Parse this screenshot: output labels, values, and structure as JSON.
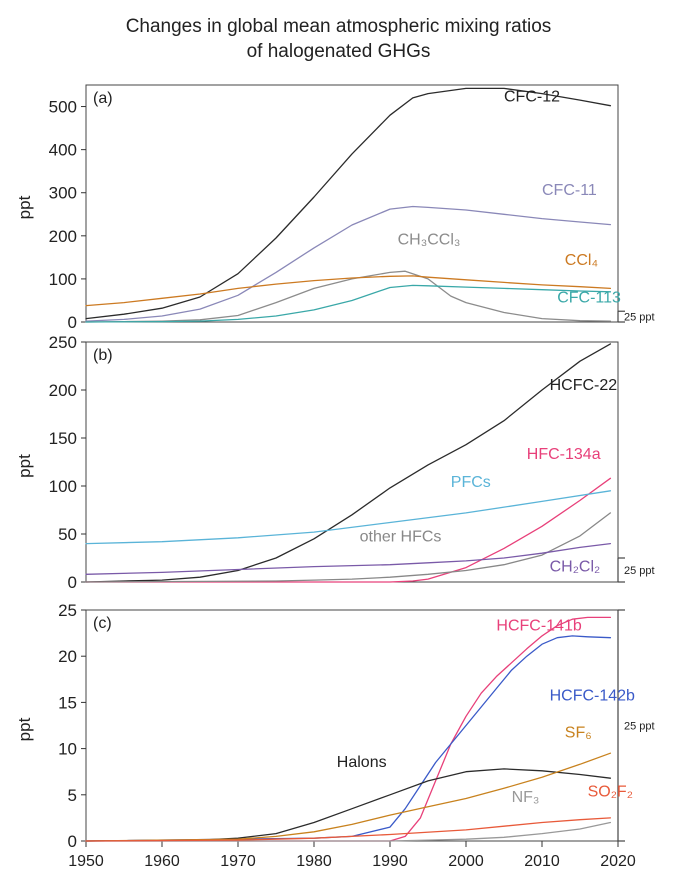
{
  "title_lines": [
    "Changes in global mean atmospheric mixing ratios",
    "of halogenated GHGs"
  ],
  "chart_data": [
    {
      "type": "line",
      "panel": "(a)",
      "ylabel": "ppt",
      "ylim": [
        0,
        550
      ],
      "yticks": [
        0,
        100,
        200,
        300,
        400,
        500
      ],
      "xlim": [
        1950,
        2020
      ],
      "scale_bar": "25 ppt",
      "series": [
        {
          "name": "CFC-12",
          "color": "#2b2b2b",
          "x": [
            1950,
            1955,
            1960,
            1965,
            1970,
            1975,
            1980,
            1985,
            1990,
            1993,
            1995,
            2000,
            2005,
            2010,
            2015,
            2019
          ],
          "values": [
            8,
            18,
            32,
            58,
            112,
            195,
            290,
            390,
            480,
            520,
            530,
            542,
            542,
            530,
            515,
            502
          ]
        },
        {
          "name": "CFC-11",
          "color": "#8a88b8",
          "x": [
            1950,
            1955,
            1960,
            1965,
            1970,
            1975,
            1980,
            1985,
            1990,
            1993,
            1995,
            2000,
            2005,
            2010,
            2015,
            2019
          ],
          "values": [
            2,
            6,
            14,
            30,
            62,
            115,
            172,
            225,
            262,
            268,
            266,
            260,
            250,
            240,
            232,
            226
          ]
        },
        {
          "name": "CH3CCl3",
          "color": "#8c8c8c",
          "x": [
            1950,
            1955,
            1960,
            1965,
            1970,
            1975,
            1980,
            1985,
            1990,
            1992,
            1995,
            1998,
            2000,
            2005,
            2010,
            2015,
            2019
          ],
          "values": [
            0,
            1,
            2,
            5,
            15,
            45,
            78,
            100,
            115,
            118,
            100,
            60,
            45,
            22,
            8,
            3,
            2
          ]
        },
        {
          "name": "CCl4",
          "color": "#cc7a22",
          "x": [
            1950,
            1955,
            1960,
            1965,
            1970,
            1975,
            1980,
            1985,
            1990,
            1993,
            1995,
            2000,
            2005,
            2010,
            2015,
            2019
          ],
          "values": [
            38,
            45,
            55,
            65,
            78,
            88,
            96,
            102,
            106,
            107,
            104,
            98,
            92,
            86,
            82,
            78
          ]
        },
        {
          "name": "CFC-113",
          "color": "#3aa8a8",
          "x": [
            1950,
            1960,
            1965,
            1970,
            1975,
            1980,
            1985,
            1990,
            1993,
            1995,
            2000,
            2005,
            2010,
            2015,
            2019
          ],
          "values": [
            0,
            1,
            2,
            6,
            14,
            28,
            50,
            80,
            85,
            84,
            81,
            78,
            75,
            72,
            70
          ]
        }
      ],
      "labels": [
        {
          "text": "CFC-12",
          "color": "#222222",
          "x": 2005,
          "y": 512
        },
        {
          "text": "CFC-11",
          "color": "#8a88b8",
          "x": 2010,
          "y": 295
        },
        {
          "text": "CH₃CCl₃",
          "color": "#8c8c8c",
          "x": 1991,
          "y": 180
        },
        {
          "text": "CCl₄",
          "color": "#cc7a22",
          "x": 2013,
          "y": 132
        },
        {
          "text": "CFC-113",
          "color": "#3aa8a8",
          "x": 2012,
          "y": 45
        }
      ]
    },
    {
      "type": "line",
      "panel": "(b)",
      "ylabel": "ppt",
      "ylim": [
        0,
        250
      ],
      "yticks": [
        0,
        50,
        100,
        150,
        200,
        250
      ],
      "xlim": [
        1950,
        2020
      ],
      "scale_bar": "25 ppt",
      "series": [
        {
          "name": "HCFC-22",
          "color": "#2b2b2b",
          "x": [
            1950,
            1955,
            1960,
            1965,
            1970,
            1975,
            1980,
            1985,
            1990,
            1995,
            2000,
            2005,
            2010,
            2015,
            2019
          ],
          "values": [
            0,
            1,
            2,
            5,
            12,
            25,
            45,
            70,
            98,
            122,
            143,
            168,
            200,
            230,
            248
          ]
        },
        {
          "name": "HFC-134a",
          "color": "#e8407a",
          "x": [
            1950,
            1990,
            1993,
            1995,
            2000,
            2005,
            2010,
            2015,
            2019
          ],
          "values": [
            0,
            0,
            1,
            3,
            15,
            35,
            58,
            85,
            108
          ]
        },
        {
          "name": "PFCs",
          "color": "#5ab4d8",
          "x": [
            1950,
            1960,
            1970,
            1980,
            1990,
            2000,
            2010,
            2019
          ],
          "values": [
            40,
            42,
            46,
            52,
            62,
            72,
            84,
            95
          ]
        },
        {
          "name": "other HFCs",
          "color": "#888888",
          "x": [
            1950,
            1975,
            1980,
            1985,
            1990,
            1995,
            2000,
            2005,
            2010,
            2015,
            2019
          ],
          "values": [
            0,
            1,
            2,
            3,
            5,
            8,
            12,
            18,
            28,
            48,
            72
          ]
        },
        {
          "name": "CH2Cl2",
          "color": "#7a5aa8",
          "x": [
            1950,
            1960,
            1970,
            1980,
            1990,
            1995,
            2000,
            2005,
            2010,
            2015,
            2019
          ],
          "values": [
            8,
            10,
            13,
            16,
            18,
            20,
            22,
            25,
            30,
            36,
            40
          ]
        }
      ],
      "labels": [
        {
          "text": "HCFC-22",
          "color": "#222222",
          "x": 2011,
          "y": 200
        },
        {
          "text": "HFC-134a",
          "color": "#e8407a",
          "x": 2008,
          "y": 128
        },
        {
          "text": "PFCs",
          "color": "#5ab4d8",
          "x": 1998,
          "y": 99
        },
        {
          "text": "other HFCs",
          "color": "#888888",
          "x": 1986,
          "y": 42
        },
        {
          "text": "CH₂Cl₂",
          "color": "#7a5aa8",
          "x": 2011,
          "y": 11
        }
      ]
    },
    {
      "type": "line",
      "panel": "(c)",
      "ylabel": "ppt",
      "ylim": [
        0,
        25
      ],
      "yticks": [
        0,
        5,
        10,
        15,
        20,
        25
      ],
      "xlim": [
        1950,
        2020
      ],
      "xticks": [
        1950,
        1960,
        1970,
        1980,
        1990,
        2000,
        2010,
        2020
      ],
      "scale_bar": "25 ppt",
      "series": [
        {
          "name": "HCFC-141b",
          "color": "#e8407a",
          "x": [
            1950,
            1990,
            1992,
            1994,
            1996,
            1998,
            2000,
            2002,
            2004,
            2006,
            2008,
            2010,
            2012,
            2014,
            2016,
            2019
          ],
          "values": [
            0,
            0,
            0.5,
            2.5,
            6.5,
            10.5,
            13.5,
            16,
            17.8,
            19.3,
            20.8,
            22.2,
            23.3,
            24,
            24.2,
            24.2
          ]
        },
        {
          "name": "HCFC-142b",
          "color": "#3a5ac8",
          "x": [
            1950,
            1980,
            1985,
            1990,
            1992,
            1994,
            1996,
            1998,
            2000,
            2002,
            2004,
            2006,
            2008,
            2010,
            2012,
            2014,
            2016,
            2019
          ],
          "values": [
            0,
            0.3,
            0.5,
            1.5,
            3.5,
            6,
            8.5,
            10.5,
            12.5,
            14.5,
            16.5,
            18.5,
            20,
            21.3,
            22,
            22.2,
            22.1,
            22
          ]
        },
        {
          "name": "Halons",
          "color": "#2b2b2b",
          "x": [
            1950,
            1965,
            1970,
            1975,
            1980,
            1985,
            1990,
            1995,
            2000,
            2005,
            2010,
            2015,
            2019
          ],
          "values": [
            0,
            0.1,
            0.3,
            0.8,
            2,
            3.5,
            5,
            6.5,
            7.5,
            7.8,
            7.6,
            7.2,
            6.8
          ]
        },
        {
          "name": "SF6",
          "color": "#c8821e",
          "x": [
            1950,
            1970,
            1975,
            1980,
            1985,
            1990,
            1995,
            2000,
            2005,
            2010,
            2015,
            2019
          ],
          "values": [
            0,
            0.2,
            0.5,
            1,
            1.8,
            2.8,
            3.7,
            4.6,
            5.7,
            6.9,
            8.3,
            9.5
          ]
        },
        {
          "name": "NF3",
          "color": "#999999",
          "x": [
            1950,
            1990,
            1995,
            2000,
            2005,
            2010,
            2015,
            2019
          ],
          "values": [
            0,
            0,
            0.1,
            0.2,
            0.4,
            0.8,
            1.3,
            2
          ]
        },
        {
          "name": "SO2F2",
          "color": "#e85a3a",
          "x": [
            1950,
            1970,
            1980,
            1990,
            2000,
            2005,
            2010,
            2015,
            2019
          ],
          "values": [
            0,
            0.1,
            0.3,
            0.7,
            1.2,
            1.6,
            2,
            2.3,
            2.5
          ]
        }
      ],
      "labels": [
        {
          "text": "HCFC-141b",
          "color": "#e8407a",
          "x": 2004,
          "y": 22.8
        },
        {
          "text": "HCFC-142b",
          "color": "#3a5ac8",
          "x": 2011,
          "y": 15.2
        },
        {
          "text": "SF₆",
          "color": "#c8821e",
          "x": 2013,
          "y": 11.2
        },
        {
          "text": "Halons",
          "color": "#222222",
          "x": 1983,
          "y": 8.0
        },
        {
          "text": "NF₃",
          "color": "#999999",
          "x": 2006,
          "y": 4.2
        },
        {
          "text": "SO₂F₂",
          "color": "#e85a3a",
          "x": 2016,
          "y": 4.8
        }
      ]
    }
  ]
}
